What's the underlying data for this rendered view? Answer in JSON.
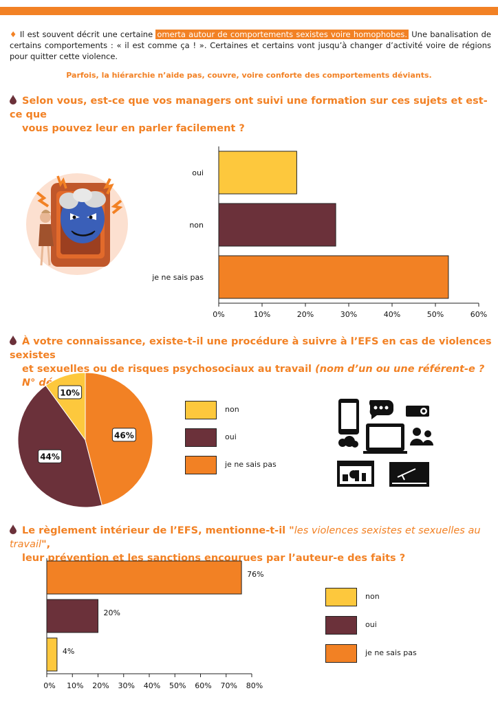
{
  "colors": {
    "accent": "#f28124",
    "yellow": "#fdc83d",
    "maroon": "#6b313a",
    "orange": "#f28124"
  },
  "intro": {
    "bullet": "♦",
    "part1": "Il est souvent décrit une certaine ",
    "highlight": "omerta autour de comportements sexistes voire homophobes.",
    "part2": " Une banalisation de certains comportements : « il est comme ça ! ». Certaines et certains vont jusqu’à changer d’activité voire de régions pour quitter cette violence.",
    "subline": "Parfois, la hiérarchie n’aide pas, couvre, voire conforte des comportements déviants."
  },
  "q1": {
    "line1": "Selon vous, est-ce que vos managers ont suivi une formation sur ces sujets et est-ce que",
    "line2": "vous pouvez leur en parler facilement ?"
  },
  "q2": {
    "line1": "À votre connaissance, existe-t-il une procédure à suivre à l’EFS en cas de violences sexistes",
    "line2_main": "et sexuelles ou de risques psychosociaux au travail ",
    "line2_italic": "(nom d’un ou une référent-e ? N° dédié ? …)",
    "line2_end": " ?"
  },
  "q3": {
    "line1_main": "Le règlement intérieur de l’EFS, mentionne-t-il \"",
    "line1_italic": "les violences sexistes et sexuelles au travail",
    "line1_end": "\",",
    "line2": "leur prévention et les sanctions encourues par l’auteur-e des faits ?"
  },
  "chart_data": [
    {
      "type": "bar",
      "orientation": "horizontal",
      "categories": [
        "oui",
        "non",
        "je ne sais pas"
      ],
      "values": [
        18,
        27,
        53
      ],
      "unit": "%",
      "colors": [
        "#fdc83d",
        "#6b313a",
        "#f28124"
      ],
      "xlim": [
        0,
        60
      ],
      "ticks": [
        "0%",
        "10%",
        "20%",
        "30%",
        "40%",
        "50%",
        "60%"
      ],
      "grid": false
    },
    {
      "type": "pie",
      "labels": [
        "non",
        "oui",
        "je ne sais pas"
      ],
      "values": [
        10,
        44,
        46
      ],
      "value_labels": [
        "10%",
        "44%",
        "46%"
      ],
      "colors": [
        "#fdc83d",
        "#6b313a",
        "#f28124"
      ],
      "legend": [
        "non",
        "oui",
        "je ne sais pas"
      ],
      "legend_position": "right"
    },
    {
      "type": "bar",
      "orientation": "horizontal",
      "categories": [
        "je ne sais pas",
        "oui",
        "non"
      ],
      "values": [
        76,
        20,
        4
      ],
      "value_labels": [
        "76%",
        "20%",
        "4%"
      ],
      "colors": [
        "#f28124",
        "#6b313a",
        "#fdc83d"
      ],
      "xlim": [
        0,
        80
      ],
      "ticks": [
        "0%",
        "10%",
        "20%",
        "30%",
        "40%",
        "50%",
        "60%",
        "70%",
        "80%"
      ],
      "legend": [
        "non",
        "oui",
        "je ne sais pas"
      ],
      "legend_colors": [
        "#fdc83d",
        "#6b313a",
        "#f28124"
      ],
      "legend_position": "right",
      "grid": false
    }
  ],
  "icons": {
    "illustration": "angry-manager-illustration",
    "devices": "devices-icon-set"
  }
}
